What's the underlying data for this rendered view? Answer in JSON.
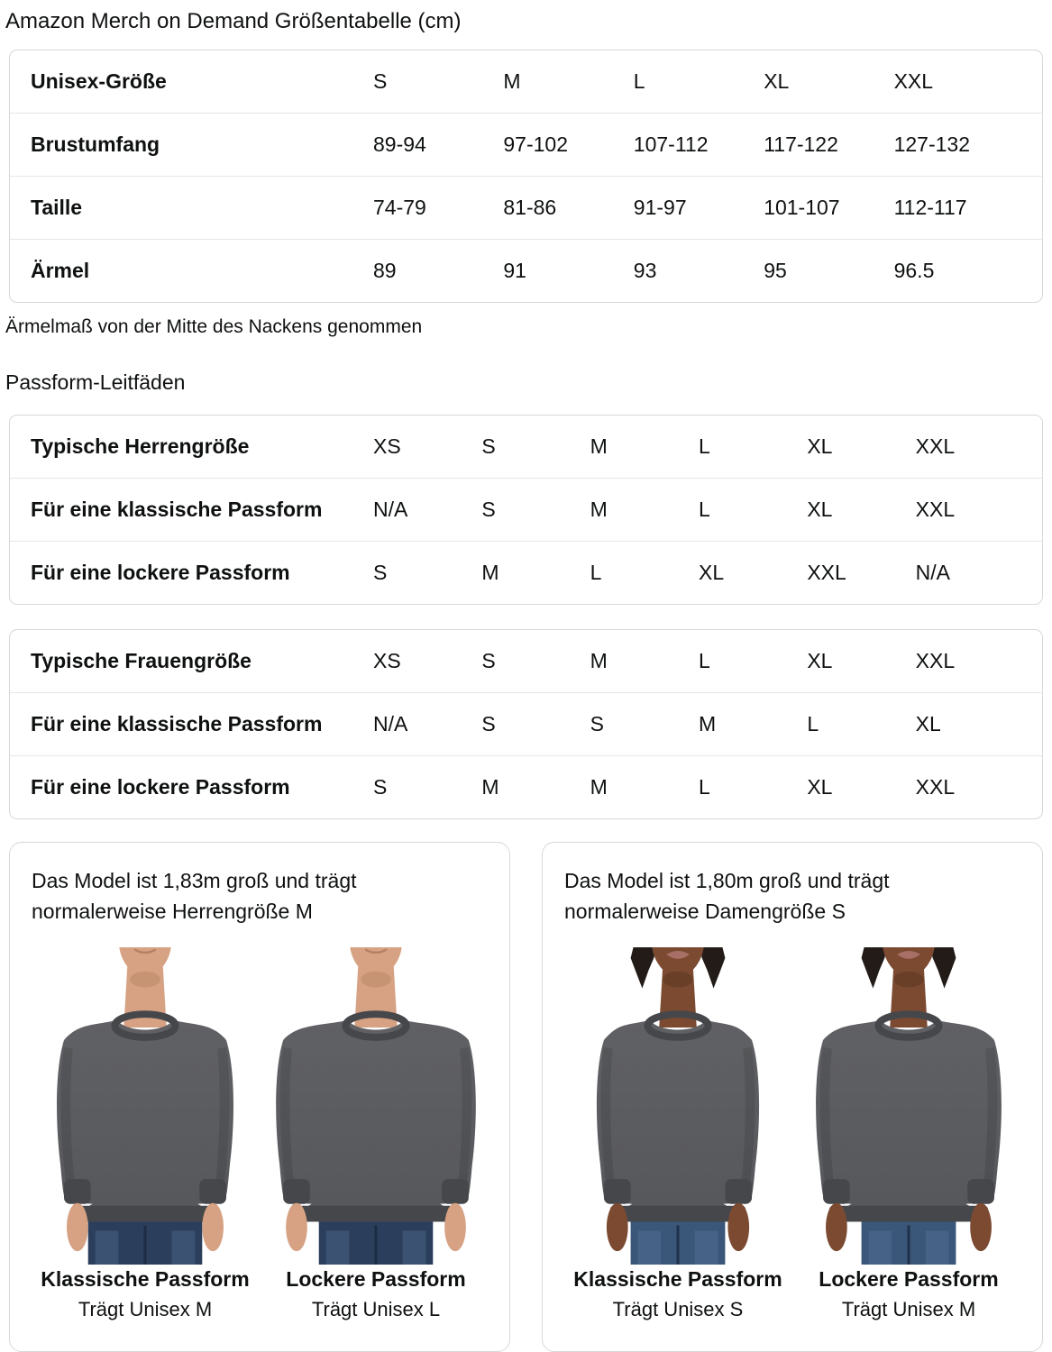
{
  "page": {
    "title": "Amazon Merch on Demand Größentabelle (cm)",
    "sleeve_note": "Ärmelmaß von der Mitte des Nackens genommen",
    "fit_guides_title": "Passform-Leitfäden"
  },
  "tables": {
    "size": {
      "rows": [
        {
          "label": "Unisex-Größe",
          "values": [
            "S",
            "M",
            "L",
            "XL",
            "XXL"
          ]
        },
        {
          "label": "Brustumfang",
          "values": [
            "89-94",
            "97-102",
            "107-112",
            "117-122",
            "127-132"
          ]
        },
        {
          "label": "Taille",
          "values": [
            "74-79",
            "81-86",
            "91-97",
            "101-107",
            "112-117"
          ]
        },
        {
          "label": "Ärmel",
          "values": [
            "89",
            "91",
            "93",
            "95",
            "96.5"
          ]
        }
      ]
    },
    "men_fit": {
      "rows": [
        {
          "label": "Typische Herrengröße",
          "values": [
            "XS",
            "S",
            "M",
            "L",
            "XL",
            "XXL"
          ]
        },
        {
          "label": "Für eine klassische Passform",
          "values": [
            "N/A",
            "S",
            "M",
            "L",
            "XL",
            "XXL"
          ]
        },
        {
          "label": "Für eine lockere Passform",
          "values": [
            "S",
            "M",
            "L",
            "XL",
            "XXL",
            "N/A"
          ]
        }
      ]
    },
    "women_fit": {
      "rows": [
        {
          "label": "Typische Frauengröße",
          "values": [
            "XS",
            "S",
            "M",
            "L",
            "XL",
            "XXL"
          ]
        },
        {
          "label": "Für eine klassische Passform",
          "values": [
            "N/A",
            "S",
            "S",
            "M",
            "L",
            "XL"
          ]
        },
        {
          "label": "Für eine lockere Passform",
          "values": [
            "S",
            "M",
            "M",
            "L",
            "XL",
            "XXL"
          ]
        }
      ]
    }
  },
  "cards": {
    "men": {
      "heading": "Das Model ist 1,83m groß und trägt normalerweise Herrengröße M",
      "figures": [
        {
          "caption": "Klassische Passform",
          "sub": "Trägt Unisex M"
        },
        {
          "caption": "Lockere Passform",
          "sub": "Trägt Unisex L"
        }
      ]
    },
    "women": {
      "heading": "Das Model ist 1,80m groß und trägt normalerweise Damengröße S",
      "figures": [
        {
          "caption": "Klassische Passform",
          "sub": "Trägt Unisex S"
        },
        {
          "caption": "Lockere Passform",
          "sub": "Trägt Unisex M"
        }
      ]
    }
  },
  "colors": {
    "sweatshirt": "#56575b",
    "sweatshirt_dark": "#46474b",
    "sweatshirt_light": "#606165",
    "jeans_men": "#2b3f5c",
    "jeans_women": "#3a5679",
    "jeans_highlight": "#6d8db4",
    "jeans_seam": "#16243a",
    "skin_men": "#d7a284",
    "skin_men_shade": "#b4825f",
    "skin_women": "#7b4a31",
    "skin_women_shade": "#573220",
    "lips_women": "#a86f66",
    "hair_women": "#221b17",
    "table_border": "#d5d9d9",
    "row_divider": "#e7e7e7",
    "text": "#0f1111"
  }
}
